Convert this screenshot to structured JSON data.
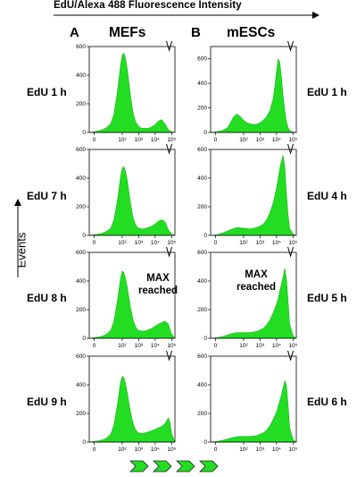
{
  "figure": {
    "top_label": "EdU/Alexa 488 Fluorescence Intensity",
    "y_axis_label": "Events",
    "panel_a_letter": "A",
    "panel_b_letter": "B",
    "col_a_title": "MEFs",
    "col_b_title": "mESCs",
    "fill_color": "#22dd22",
    "max_annotation_line1": "MAX",
    "max_annotation_line2": "reached"
  },
  "chart_data": [
    {
      "type": "area",
      "panel": "A",
      "row_label": "EdU 1 h",
      "x": [
        0,
        0.3,
        0.7,
        1,
        1.3,
        1.5,
        1.7,
        1.9,
        2,
        2.1,
        2.2,
        2.3,
        2.4,
        2.5,
        2.6,
        2.7,
        2.8,
        2.9,
        3,
        3.1,
        3.2,
        3.4,
        3.6,
        3.8,
        4,
        4.2,
        4.4,
        4.6,
        4.8,
        5,
        5.2
      ],
      "y": [
        0,
        5,
        15,
        30,
        60,
        130,
        280,
        470,
        540,
        555,
        520,
        450,
        360,
        260,
        180,
        120,
        80,
        60,
        45,
        35,
        30,
        28,
        30,
        40,
        55,
        80,
        90,
        60,
        20,
        5,
        0
      ],
      "ylim": [
        0,
        600
      ],
      "yticks": [
        "0",
        "200",
        "400",
        "600"
      ],
      "xticks": [
        "0",
        "10²",
        "10³",
        "10⁴",
        "10⁵"
      ]
    },
    {
      "type": "area",
      "panel": "A",
      "row_label": "EdU 7 h",
      "x": [
        0,
        0.3,
        0.7,
        1,
        1.3,
        1.5,
        1.7,
        1.9,
        2,
        2.1,
        2.2,
        2.3,
        2.4,
        2.5,
        2.6,
        2.7,
        2.8,
        2.9,
        3,
        3.2,
        3.4,
        3.6,
        3.8,
        4,
        4.2,
        4.4,
        4.6,
        4.8,
        5,
        5.2
      ],
      "y": [
        0,
        5,
        12,
        25,
        50,
        110,
        240,
        410,
        470,
        480,
        450,
        390,
        310,
        230,
        160,
        110,
        80,
        60,
        50,
        45,
        48,
        55,
        65,
        80,
        100,
        110,
        95,
        40,
        10,
        0
      ],
      "ylim": [
        0,
        600
      ],
      "yticks": [
        "0",
        "200",
        "400",
        "600"
      ],
      "xticks": [
        "0",
        "10²",
        "10³",
        "10⁴",
        "10⁵"
      ]
    },
    {
      "type": "area",
      "panel": "A",
      "row_label": "EdU 8 h",
      "x": [
        0,
        0.3,
        0.7,
        1,
        1.3,
        1.5,
        1.7,
        1.9,
        2,
        2.1,
        2.2,
        2.3,
        2.4,
        2.5,
        2.6,
        2.7,
        2.8,
        2.9,
        3,
        3.2,
        3.4,
        3.6,
        3.8,
        4,
        4.2,
        4.4,
        4.6,
        4.8,
        5,
        5.2
      ],
      "y": [
        0,
        5,
        12,
        25,
        55,
        120,
        260,
        420,
        470,
        460,
        420,
        360,
        290,
        220,
        160,
        115,
        85,
        65,
        55,
        50,
        52,
        60,
        70,
        85,
        100,
        110,
        120,
        100,
        30,
        0
      ],
      "ylim": [
        0,
        600
      ],
      "yticks": [
        "0",
        "200",
        "400",
        "600"
      ],
      "xticks": [
        "0",
        "10²",
        "10³",
        "10⁴",
        "10⁵"
      ]
    },
    {
      "type": "area",
      "panel": "A",
      "row_label": "EdU 9 h",
      "x": [
        0,
        0.3,
        0.7,
        1,
        1.3,
        1.5,
        1.7,
        1.9,
        2,
        2.1,
        2.2,
        2.3,
        2.4,
        2.5,
        2.6,
        2.7,
        2.8,
        2.9,
        3,
        3.2,
        3.4,
        3.6,
        3.8,
        4,
        4.2,
        4.4,
        4.6,
        4.8,
        4.9,
        5,
        5.2
      ],
      "y": [
        0,
        5,
        12,
        25,
        55,
        120,
        260,
        420,
        460,
        450,
        410,
        350,
        280,
        215,
        160,
        120,
        90,
        75,
        65,
        60,
        65,
        72,
        80,
        90,
        100,
        110,
        130,
        170,
        140,
        60,
        0
      ],
      "ylim": [
        0,
        600
      ],
      "yticks": [
        "0",
        "200",
        "400",
        "600"
      ],
      "xticks": [
        "0",
        "10²",
        "10³",
        "10⁴",
        "10⁵"
      ]
    },
    {
      "type": "area",
      "panel": "B",
      "row_label": "EdU 1 h",
      "x": [
        0,
        0.3,
        0.7,
        1,
        1.2,
        1.4,
        1.6,
        1.8,
        2,
        2.2,
        2.4,
        2.6,
        2.8,
        3,
        3.2,
        3.4,
        3.6,
        3.8,
        3.9,
        4,
        4.1,
        4.2,
        4.3,
        4.4,
        4.5,
        4.6,
        4.7,
        4.8,
        5,
        5.2
      ],
      "y": [
        0,
        5,
        15,
        35,
        80,
        130,
        150,
        130,
        100,
        80,
        70,
        65,
        68,
        80,
        100,
        130,
        180,
        280,
        380,
        500,
        600,
        570,
        450,
        300,
        180,
        90,
        40,
        15,
        5,
        0
      ],
      "ylim": [
        0,
        700
      ],
      "yticks": [
        "0",
        "200",
        "400",
        "600"
      ],
      "xticks": [
        "0",
        "10²",
        "10³",
        "10⁴",
        "10⁵"
      ]
    },
    {
      "type": "area",
      "panel": "B",
      "row_label": "EdU 4 h",
      "x": [
        0,
        0.4,
        0.8,
        1.2,
        1.6,
        2,
        2.4,
        2.8,
        3,
        3.2,
        3.4,
        3.6,
        3.8,
        4,
        4.1,
        4.2,
        4.3,
        4.4,
        4.5,
        4.6,
        4.7,
        4.8,
        5,
        5.2
      ],
      "y": [
        0,
        5,
        20,
        40,
        55,
        50,
        45,
        55,
        65,
        80,
        110,
        160,
        230,
        330,
        400,
        470,
        520,
        560,
        480,
        300,
        140,
        50,
        10,
        0
      ],
      "ylim": [
        0,
        600
      ],
      "yticks": [
        "0",
        "200",
        "400",
        "600"
      ],
      "xticks": [
        "0",
        "10²",
        "10³",
        "10⁴",
        "10⁵"
      ]
    },
    {
      "type": "area",
      "panel": "B",
      "row_label": "EdU 5 h",
      "x": [
        0,
        0.4,
        0.8,
        1.2,
        1.6,
        2,
        2.4,
        2.8,
        3,
        3.2,
        3.4,
        3.6,
        3.8,
        4,
        4.1,
        4.2,
        4.3,
        4.4,
        4.5,
        4.6,
        4.7,
        4.8,
        5,
        5.2
      ],
      "y": [
        0,
        5,
        15,
        30,
        40,
        40,
        40,
        48,
        58,
        70,
        95,
        130,
        180,
        240,
        280,
        330,
        380,
        430,
        490,
        420,
        260,
        100,
        20,
        0
      ],
      "ylim": [
        0,
        600
      ],
      "yticks": [
        "0",
        "200",
        "400",
        "600"
      ],
      "xticks": [
        "0",
        "10²",
        "10³",
        "10⁴",
        "10⁵"
      ]
    },
    {
      "type": "area",
      "panel": "B",
      "row_label": "EdU 6 h",
      "x": [
        0,
        0.4,
        0.8,
        1.2,
        1.6,
        2,
        2.4,
        2.8,
        3,
        3.2,
        3.4,
        3.6,
        3.8,
        4,
        4.1,
        4.2,
        4.3,
        4.4,
        4.5,
        4.6,
        4.7,
        4.8,
        5,
        5.2
      ],
      "y": [
        0,
        5,
        15,
        28,
        38,
        40,
        40,
        45,
        55,
        65,
        85,
        115,
        160,
        210,
        250,
        290,
        330,
        380,
        430,
        400,
        260,
        100,
        20,
        0
      ],
      "ylim": [
        0,
        600
      ],
      "yticks": [
        "0",
        "200",
        "400",
        "600"
      ],
      "xticks": [
        "0",
        "10²",
        "10³",
        "10⁴",
        "10⁵"
      ]
    }
  ]
}
